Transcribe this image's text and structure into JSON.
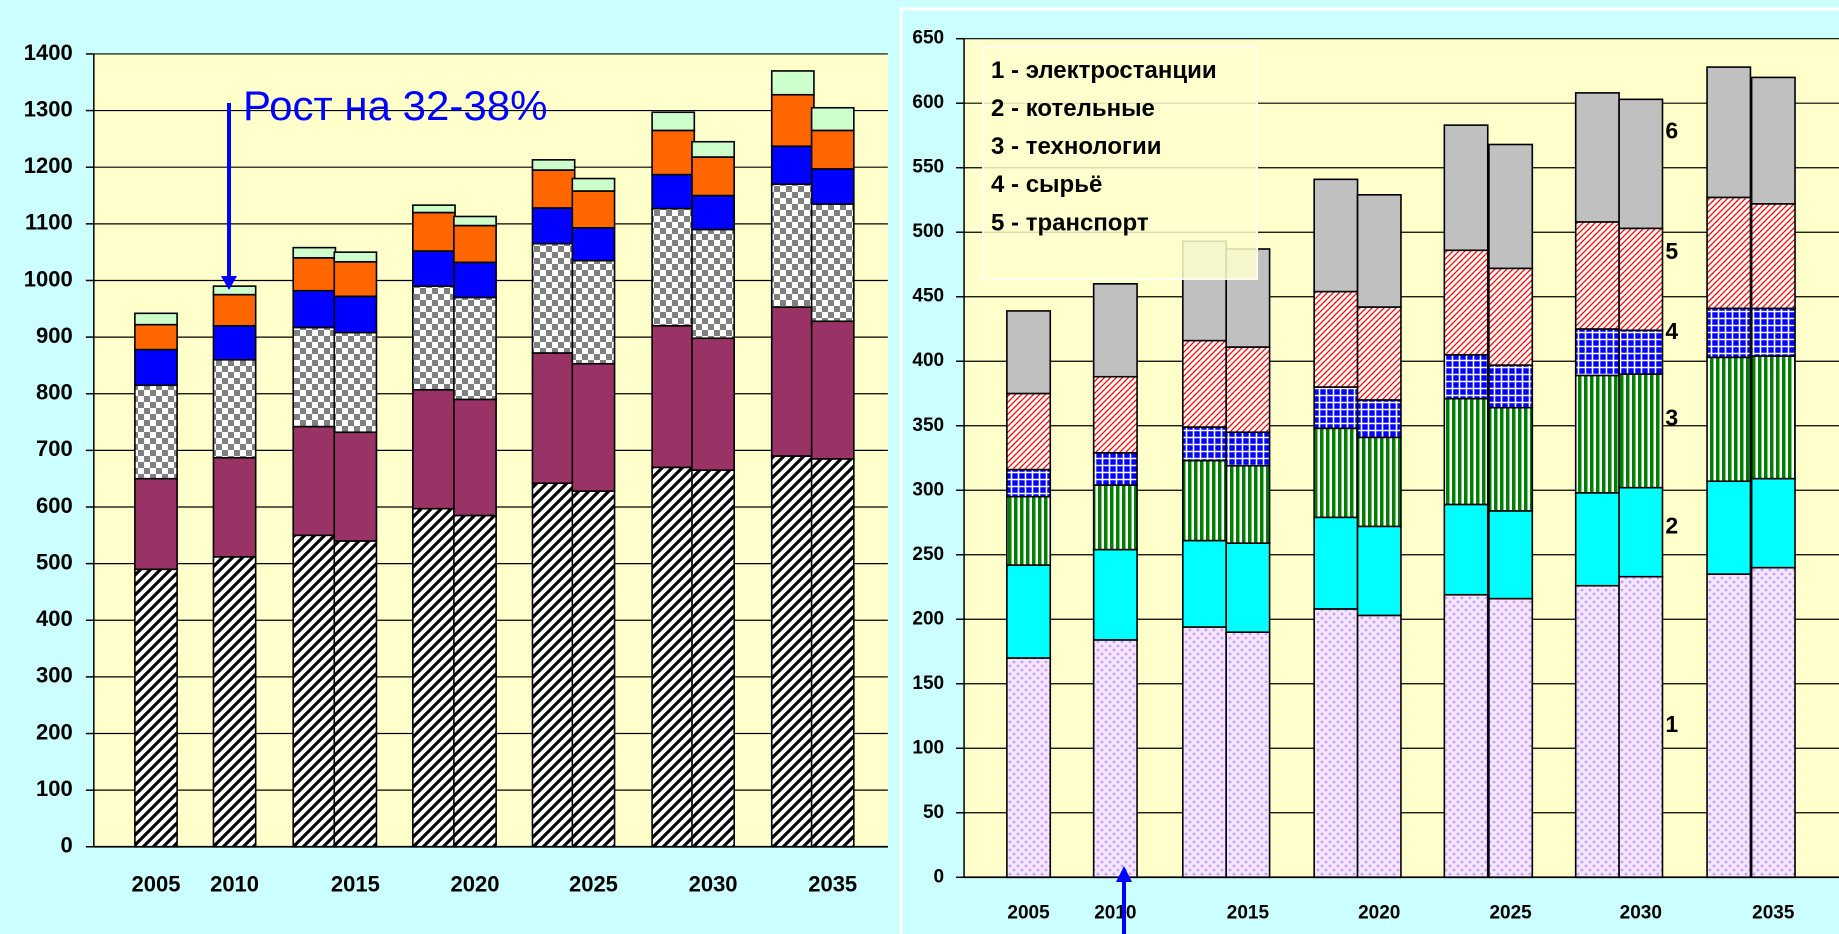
{
  "chart_data": [
    {
      "type": "stacked-bar",
      "categories": [
        "2005",
        "2010",
        null,
        "2015",
        null,
        "2020",
        null,
        "2025",
        null,
        "2030",
        null,
        "2035"
      ],
      "ylim": [
        0,
        1400
      ],
      "yticks": [
        0,
        100,
        200,
        300,
        400,
        500,
        600,
        700,
        800,
        900,
        1000,
        1100,
        1200,
        1300,
        1400
      ],
      "grid": true,
      "annotation": "Рост на 32-38%",
      "series": [
        {
          "color": "#000000",
          "pattern": "hatch",
          "values": [
            490,
            512,
            550,
            540,
            597,
            585,
            642,
            628,
            670,
            665,
            690,
            685
          ]
        },
        {
          "color": "#993366",
          "pattern": "solid",
          "values": [
            160,
            175,
            192,
            192,
            210,
            205,
            230,
            225,
            250,
            233,
            263,
            243
          ]
        },
        {
          "color": "#808080",
          "pattern": "check",
          "values": [
            165,
            173,
            175,
            176,
            183,
            180,
            193,
            182,
            207,
            192,
            217,
            207
          ]
        },
        {
          "color": "#0000ff",
          "pattern": "solid",
          "values": [
            63,
            60,
            65,
            64,
            62,
            62,
            63,
            58,
            60,
            60,
            67,
            62
          ]
        },
        {
          "color": "#ff6600",
          "pattern": "solid",
          "values": [
            44,
            55,
            58,
            61,
            68,
            65,
            67,
            65,
            78,
            68,
            91,
            68
          ]
        },
        {
          "color": "#ccffcc",
          "pattern": "solid",
          "values": [
            20,
            15,
            18,
            17,
            13,
            16,
            18,
            22,
            32,
            27,
            42,
            40
          ]
        }
      ]
    },
    {
      "type": "stacked-bar",
      "categories": [
        "2005",
        "2010",
        null,
        "2015",
        null,
        "2020",
        null,
        "2025",
        null,
        "2030",
        null,
        "2035"
      ],
      "ylim": [
        0,
        650
      ],
      "yticks": [
        0,
        50,
        100,
        150,
        200,
        250,
        300,
        350,
        400,
        450,
        500,
        550,
        600,
        650
      ],
      "grid": true,
      "legend": "top-left",
      "segment_labels": [
        "1",
        "2",
        "3",
        "4",
        "5",
        "6"
      ],
      "series": [
        {
          "name": "1 - электростанции",
          "color": "#cc99ff",
          "pattern": "dots",
          "values": [
            170,
            184,
            194,
            190,
            208,
            203,
            219,
            216,
            226,
            233,
            235,
            240
          ]
        },
        {
          "name": "2 - котельные",
          "color": "#00ffff",
          "pattern": "solid",
          "values": [
            72,
            70,
            67,
            69,
            71,
            69,
            70,
            68,
            72,
            69,
            72,
            69
          ]
        },
        {
          "name": "3 - технологии",
          "color": "#008000",
          "pattern": "vstripe",
          "values": [
            53,
            50,
            62,
            60,
            69,
            69,
            82,
            80,
            91,
            88,
            96,
            95
          ]
        },
        {
          "name": "4 - сырьё",
          "color": "#0000ff",
          "pattern": "grid",
          "values": [
            21,
            25,
            26,
            26,
            32,
            29,
            34,
            33,
            36,
            34,
            38,
            37
          ]
        },
        {
          "name": "5 - транспорт",
          "color": "#ff0000",
          "pattern": "diag",
          "values": [
            59,
            59,
            67,
            66,
            74,
            72,
            81,
            75,
            83,
            79,
            86,
            81
          ]
        },
        {
          "color": "#c0c0c0",
          "pattern": "solid",
          "values": [
            64,
            72,
            77,
            76,
            87,
            87,
            97,
            96,
            100,
            100,
            101,
            98
          ]
        }
      ]
    }
  ]
}
